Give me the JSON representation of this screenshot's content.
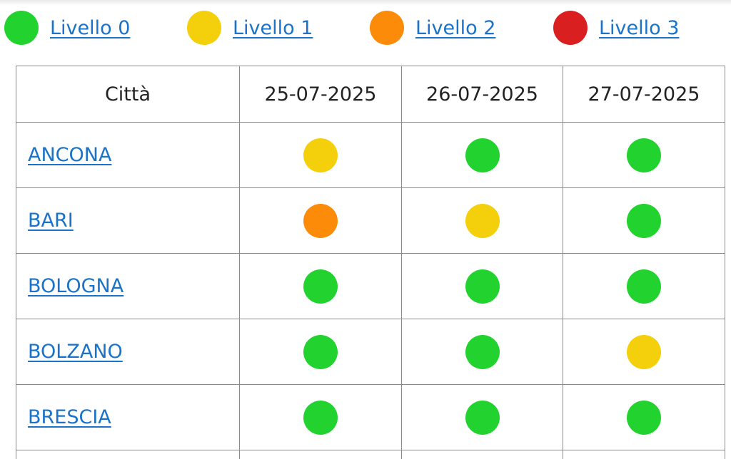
{
  "colors": {
    "0": "#22d22e",
    "1": "#f4cf0c",
    "2": "#fb8b09",
    "3": "#d91f1f",
    "link": "#1a73c8"
  },
  "legend": [
    {
      "label": "Livello 0",
      "level": 0
    },
    {
      "label": "Livello 1",
      "level": 1
    },
    {
      "label": "Livello 2",
      "level": 2
    },
    {
      "label": "Livello 3",
      "level": 3
    }
  ],
  "table": {
    "header_city": "Città",
    "dates": [
      "25-07-2025",
      "26-07-2025",
      "27-07-2025"
    ],
    "rows": [
      {
        "city": "ANCONA",
        "levels": [
          1,
          0,
          0
        ]
      },
      {
        "city": "BARI",
        "levels": [
          2,
          1,
          0
        ]
      },
      {
        "city": "BOLOGNA",
        "levels": [
          0,
          0,
          0
        ]
      },
      {
        "city": "BOLZANO",
        "levels": [
          0,
          0,
          1
        ]
      },
      {
        "city": "BRESCIA",
        "levels": [
          0,
          0,
          0
        ]
      }
    ]
  }
}
